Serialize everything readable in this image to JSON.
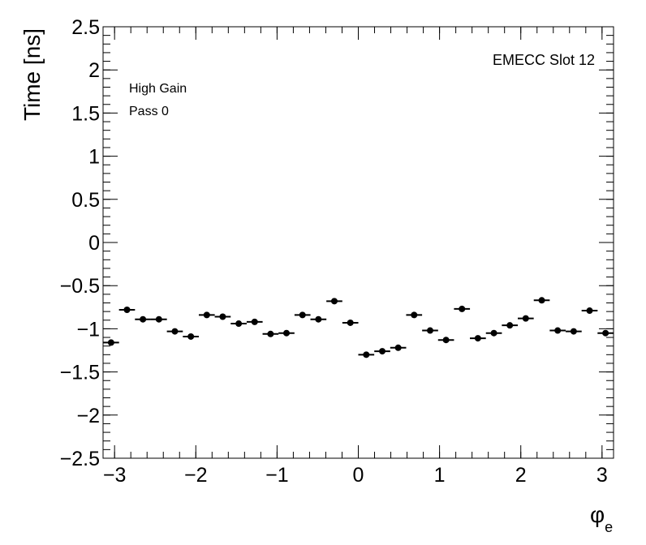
{
  "chart_data": {
    "type": "scatter",
    "xlabel": "φ",
    "xlabel_sub": "e",
    "ylabel": "Time [ns]",
    "xlim": [
      -3.1416,
      3.1416
    ],
    "ylim": [
      -2.5,
      2.5
    ],
    "x_ticks": [
      -3,
      -2,
      -1,
      0,
      1,
      2,
      3
    ],
    "x_tick_labels": [
      "−3",
      "−2",
      "−1",
      "0",
      "1",
      "2",
      "3"
    ],
    "y_ticks": [
      -2.5,
      -2,
      -1.5,
      -1,
      -0.5,
      0,
      0.5,
      1,
      1.5,
      2,
      2.5
    ],
    "y_tick_labels": [
      "−2.5",
      "−2",
      "−1.5",
      "−1",
      "−0.5",
      "0",
      "0.5",
      "1",
      "1.5",
      "2",
      "2.5"
    ],
    "annotations": {
      "top_right": "EMECC Slot 12",
      "line1": "High Gain",
      "line2": "Pass 0"
    },
    "bin_half_width": 0.0982,
    "x": [
      -3.043,
      -2.847,
      -2.651,
      -2.454,
      -2.258,
      -2.061,
      -1.865,
      -1.669,
      -1.472,
      -1.276,
      -1.08,
      -0.884,
      -0.687,
      -0.491,
      -0.295,
      -0.098,
      0.098,
      0.295,
      0.491,
      0.687,
      0.884,
      1.08,
      1.276,
      1.472,
      1.669,
      1.865,
      2.061,
      2.258,
      2.454,
      2.651,
      2.847,
      3.043
    ],
    "y": [
      -1.16,
      -0.78,
      -0.89,
      -0.89,
      -1.03,
      -1.09,
      -0.84,
      -0.86,
      -0.94,
      -0.92,
      -1.06,
      -1.05,
      -0.84,
      -0.89,
      -0.68,
      -0.93,
      -1.3,
      -1.26,
      -1.22,
      -0.84,
      -1.02,
      -1.13,
      -0.77,
      -1.11,
      -1.05,
      -0.96,
      -0.88,
      -0.67,
      -1.02,
      -1.03,
      -0.79,
      -1.05
    ]
  }
}
